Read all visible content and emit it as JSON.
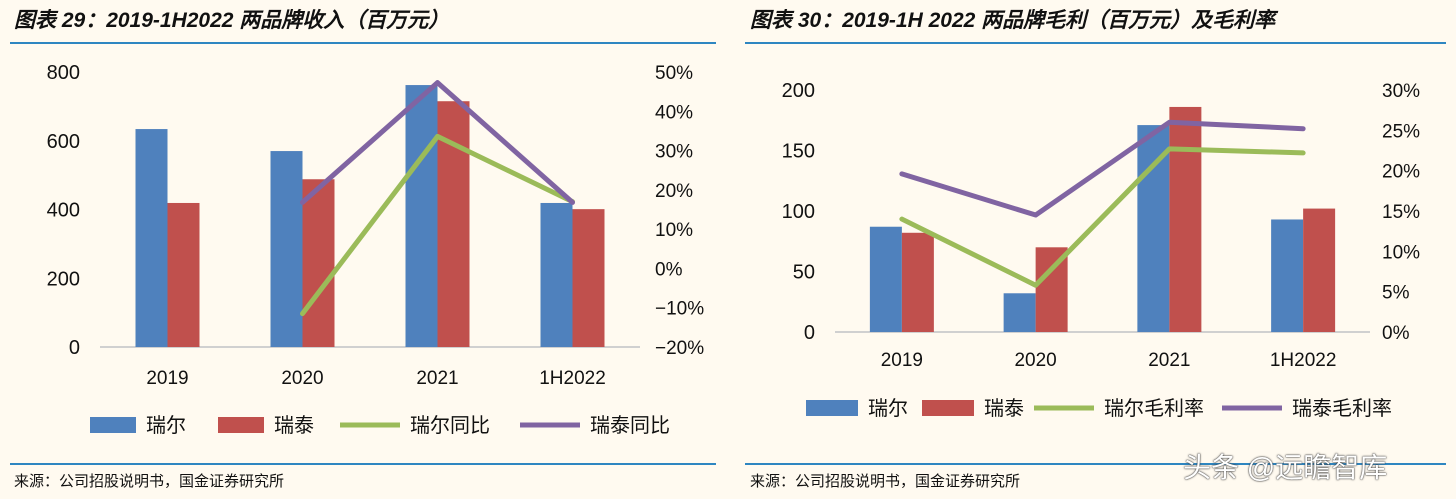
{
  "chart_data": [
    {
      "type": "bar",
      "title": "图表 29：2019-1H2022 两品牌收入（百万元）",
      "source": "来源：公司招股说明书，国金证券研究所",
      "categories": [
        "2019",
        "2020",
        "2021",
        "1H2022"
      ],
      "ylim": [
        0,
        800
      ],
      "yticks": [
        "800",
        "600",
        "400",
        "200",
        "0"
      ],
      "y2lim": [
        -20,
        50
      ],
      "y2ticks": [
        "50%",
        "40%",
        "30%",
        "20%",
        "10%",
        "0%",
        "-10%",
        "-20%"
      ],
      "grid": false,
      "legend_position": "bottom",
      "series": [
        {
          "name": "瑞尔",
          "kind": "bar",
          "axis": "left",
          "color": "#4f81bd",
          "values": [
            634,
            570,
            762,
            419
          ]
        },
        {
          "name": "瑞泰",
          "kind": "bar",
          "axis": "left",
          "color": "#c0504d",
          "values": [
            419,
            488,
            715,
            401
          ]
        },
        {
          "name": "瑞尔同比",
          "kind": "line",
          "axis": "right",
          "color": "#9bbb59",
          "values": [
            null,
            -11.5,
            33.6,
            17.0
          ]
        },
        {
          "name": "瑞泰同比",
          "kind": "line",
          "axis": "right",
          "color": "#8064a2",
          "values": [
            null,
            16.8,
            47.3,
            16.8
          ]
        }
      ]
    },
    {
      "type": "bar",
      "title": "图表 30：2019-1H 2022 两品牌毛利（百万元）及毛利率",
      "source": "来源：公司招股说明书，国金证券研究所",
      "categories": [
        "2019",
        "2020",
        "2021",
        "1H2022"
      ],
      "ylim": [
        0,
        200
      ],
      "yticks": [
        "200",
        "150",
        "100",
        "50",
        "0"
      ],
      "y2lim": [
        0,
        30
      ],
      "y2ticks": [
        "30%",
        "25%",
        "20%",
        "15%",
        "10%",
        "5%",
        "0%"
      ],
      "grid": false,
      "legend_position": "bottom",
      "series": [
        {
          "name": "瑞尔",
          "kind": "bar",
          "axis": "left",
          "color": "#4f81bd",
          "values": [
            87,
            32,
            171,
            93
          ]
        },
        {
          "name": "瑞泰",
          "kind": "bar",
          "axis": "left",
          "color": "#c0504d",
          "values": [
            82,
            70,
            186,
            102
          ]
        },
        {
          "name": "瑞尔毛利率",
          "kind": "line",
          "axis": "right",
          "color": "#9bbb59",
          "values": [
            14.0,
            5.8,
            22.7,
            22.2
          ]
        },
        {
          "name": "瑞泰毛利率",
          "kind": "line",
          "axis": "right",
          "color": "#8064a2",
          "values": [
            19.6,
            14.5,
            26.0,
            25.2
          ]
        }
      ]
    }
  ],
  "watermark": "头条 @远瞻智库"
}
